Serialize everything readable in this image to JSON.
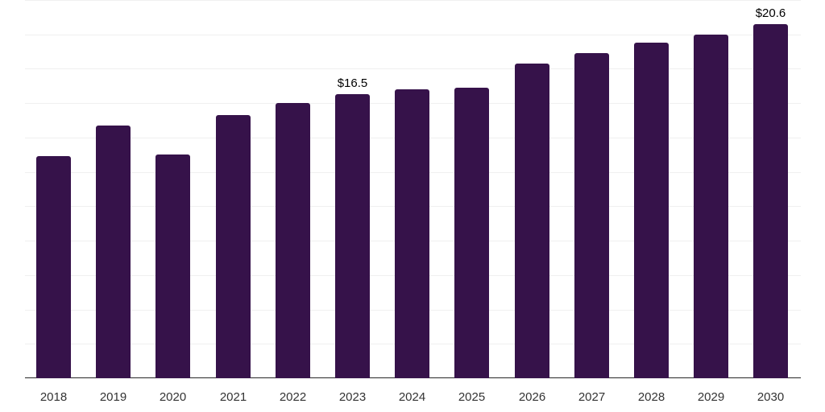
{
  "chart_data": {
    "type": "bar",
    "title": "",
    "xlabel": "",
    "ylabel": "",
    "categories": [
      "2018",
      "2019",
      "2020",
      "2021",
      "2022",
      "2023",
      "2024",
      "2025",
      "2026",
      "2027",
      "2028",
      "2029",
      "2030"
    ],
    "values": [
      12.9,
      14.7,
      13.0,
      15.3,
      16.0,
      16.5,
      16.8,
      16.9,
      18.3,
      18.9,
      19.5,
      20.0,
      20.6
    ],
    "data_labels": {
      "2023": "$16.5",
      "2030": "$20.6"
    },
    "ylim": [
      0,
      22
    ],
    "grid": true,
    "gridline_step": 2,
    "bar_color": "#36124a",
    "legend": null
  }
}
